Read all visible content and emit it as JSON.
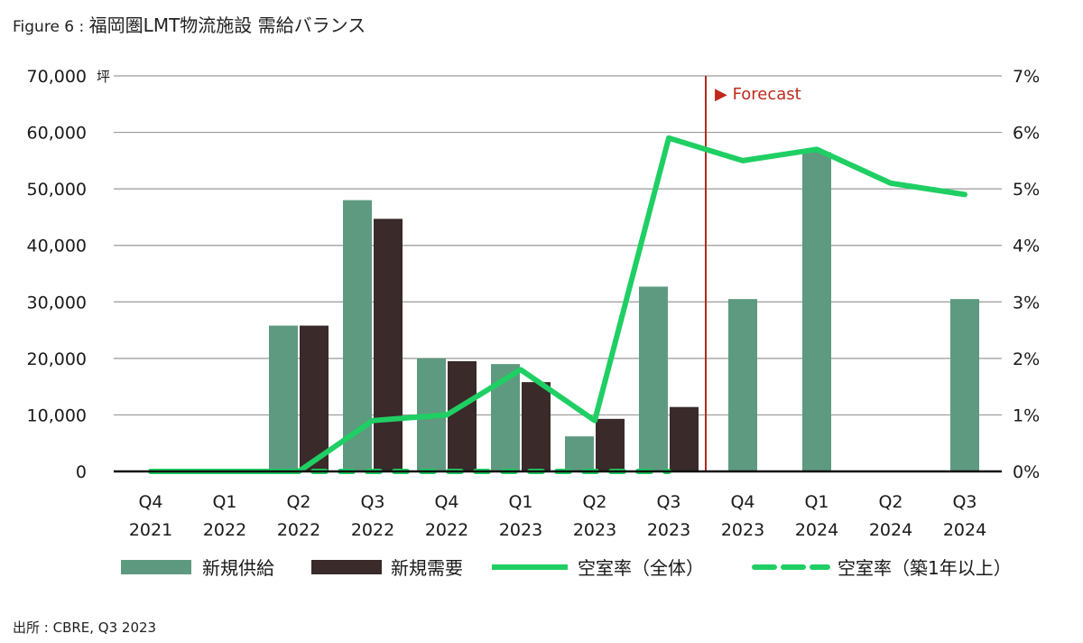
{
  "figure": {
    "label": "Figure 6 : ",
    "title": "福岡圏LMT物流施設 需給バランス"
  },
  "source": "出所 : CBRE, Q3 2023",
  "colors": {
    "supply": "#5e9a80",
    "demand": "#3a2a2a",
    "vacancy": "#1fcf63",
    "forecast_line": "#b02a1e",
    "grid": "#9a9a9a",
    "axis": "#111111"
  },
  "chart_data": {
    "type": "bar",
    "categories": [
      [
        "Q4",
        "2021"
      ],
      [
        "Q1",
        "2022"
      ],
      [
        "Q2",
        "2022"
      ],
      [
        "Q3",
        "2022"
      ],
      [
        "Q4",
        "2022"
      ],
      [
        "Q1",
        "2023"
      ],
      [
        "Q2",
        "2023"
      ],
      [
        "Q3",
        "2023"
      ],
      [
        "Q4",
        "2023"
      ],
      [
        "Q1",
        "2024"
      ],
      [
        "Q2",
        "2024"
      ],
      [
        "Q3",
        "2024"
      ]
    ],
    "y_unit": "坪",
    "ylim": [
      0,
      70000
    ],
    "y_ticks": [
      "0",
      "10,000",
      "20,000",
      "30,000",
      "40,000",
      "50,000",
      "60,000",
      "70,000"
    ],
    "y2lim": [
      0,
      7
    ],
    "y2_ticks": [
      "0%",
      "1%",
      "2%",
      "3%",
      "4%",
      "5%",
      "6%",
      "7%"
    ],
    "grid": true,
    "legend_position": "bottom",
    "forecast_label": "▶ Forecast",
    "forecast_after_index": 7,
    "series": [
      {
        "name": "新規供給",
        "kind": "bar",
        "values": [
          0,
          0,
          25800,
          48000,
          20000,
          19000,
          6200,
          32700,
          30500,
          56500,
          0,
          30500
        ]
      },
      {
        "name": "新規需要",
        "kind": "bar",
        "values": [
          0,
          0,
          25800,
          44700,
          19500,
          15800,
          9300,
          11400,
          null,
          null,
          null,
          null
        ]
      },
      {
        "name": "空室率（全体）",
        "kind": "line",
        "axis": "right",
        "values": [
          0,
          0,
          0,
          0.9,
          1.0,
          1.8,
          0.9,
          5.9,
          5.5,
          5.7,
          5.1,
          4.9
        ]
      },
      {
        "name": "空室率（築1年以上）",
        "kind": "line-dashed",
        "axis": "right",
        "values": [
          0,
          0,
          0,
          0,
          0,
          0,
          0,
          0,
          null,
          null,
          null,
          null
        ]
      }
    ]
  }
}
